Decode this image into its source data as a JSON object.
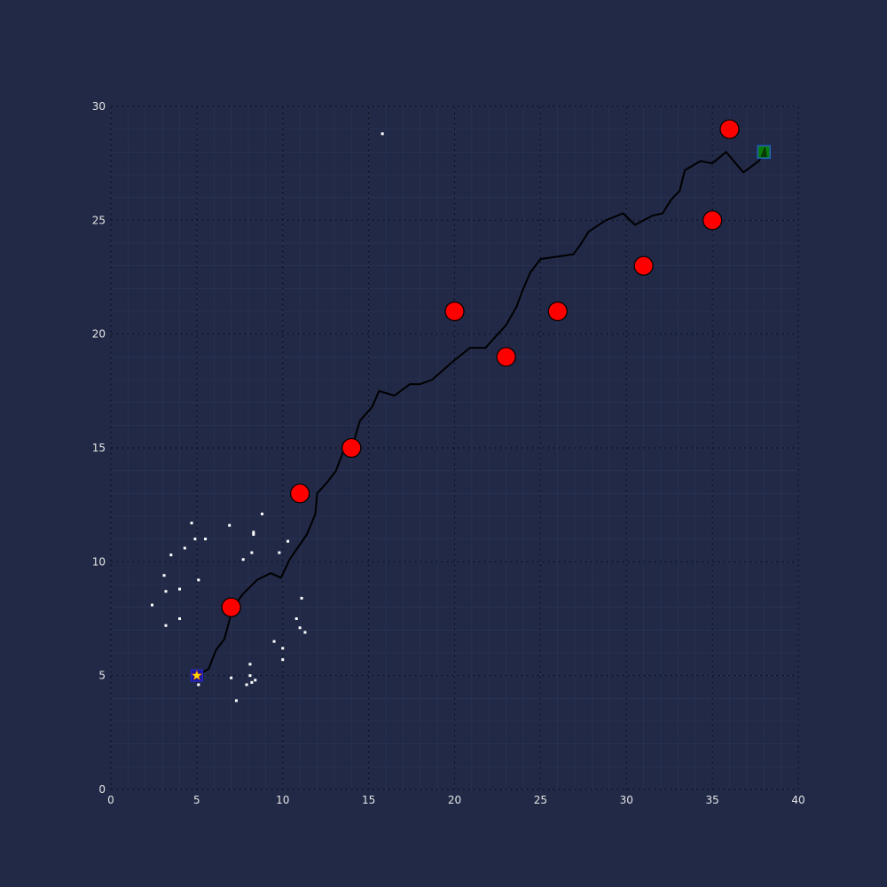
{
  "colors": {
    "background": "#212946",
    "grid_major": "#0f1428",
    "grid_minor": "#2e3758",
    "tick_text": "#e6e6e6",
    "path": "#000000",
    "obstacle": "#ff0000",
    "start_marker": "#1a1aa0",
    "start_star": "#ffd700",
    "goal_marker": "#1f5fbf",
    "goal_fill": "#0a7a0a",
    "scatter": "#ffffff"
  },
  "chart_data": {
    "type": "scatter",
    "xlim": [
      0,
      40
    ],
    "ylim": [
      0,
      30
    ],
    "xticks": [
      0,
      5,
      10,
      15,
      20,
      25,
      30,
      35,
      40
    ],
    "yticks": [
      0,
      5,
      10,
      15,
      20,
      25,
      30
    ],
    "xtick_labels": [
      "0",
      "5",
      "10",
      "15",
      "20",
      "25",
      "30",
      "35",
      "40"
    ],
    "ytick_labels": [
      "0",
      "5",
      "10",
      "15",
      "20",
      "25",
      "30"
    ],
    "grid": true,
    "start": [
      5,
      5
    ],
    "goal": [
      38,
      28
    ],
    "obstacles": [
      [
        7,
        8
      ],
      [
        11,
        13
      ],
      [
        14,
        15
      ],
      [
        20,
        21
      ],
      [
        23,
        19
      ],
      [
        26,
        21
      ],
      [
        31,
        23
      ],
      [
        35,
        25
      ],
      [
        36,
        29
      ]
    ],
    "path": [
      [
        5,
        5
      ],
      [
        5.7,
        5.3
      ],
      [
        6.1,
        6.1
      ],
      [
        6.6,
        6.6
      ],
      [
        7.1,
        8.0
      ],
      [
        7.7,
        8.6
      ],
      [
        8.5,
        9.2
      ],
      [
        9.3,
        9.5
      ],
      [
        9.9,
        9.3
      ],
      [
        10.4,
        10.1
      ],
      [
        11.4,
        11.2
      ],
      [
        11.9,
        12.1
      ],
      [
        12.0,
        13.0
      ],
      [
        12.6,
        13.5
      ],
      [
        13.1,
        14.0
      ],
      [
        13.6,
        15.0
      ],
      [
        14.1,
        15.2
      ],
      [
        14.5,
        16.2
      ],
      [
        15.2,
        16.8
      ],
      [
        15.6,
        17.5
      ],
      [
        16.5,
        17.3
      ],
      [
        17.4,
        17.8
      ],
      [
        18.0,
        17.8
      ],
      [
        18.7,
        18.0
      ],
      [
        19.9,
        18.8
      ],
      [
        20.9,
        19.4
      ],
      [
        21.8,
        19.4
      ],
      [
        23.0,
        20.4
      ],
      [
        23.6,
        21.2
      ],
      [
        24.0,
        22.0
      ],
      [
        24.4,
        22.7
      ],
      [
        25.0,
        23.3
      ],
      [
        26.9,
        23.5
      ],
      [
        27.3,
        23.9
      ],
      [
        27.8,
        24.5
      ],
      [
        28.8,
        25.0
      ],
      [
        29.8,
        25.3
      ],
      [
        30.5,
        24.8
      ],
      [
        31.5,
        25.2
      ],
      [
        32.1,
        25.3
      ],
      [
        32.6,
        25.9
      ],
      [
        33.1,
        26.3
      ],
      [
        33.4,
        27.2
      ],
      [
        34.3,
        27.6
      ],
      [
        35.0,
        27.5
      ],
      [
        35.8,
        28.0
      ],
      [
        36.8,
        27.1
      ],
      [
        37.7,
        27.6
      ],
      [
        38,
        28
      ]
    ],
    "scatter_points": [
      [
        15.8,
        28.8
      ],
      [
        4.7,
        11.7
      ],
      [
        6.9,
        11.6
      ],
      [
        8.8,
        12.1
      ],
      [
        5.5,
        11.0
      ],
      [
        4.9,
        11.0
      ],
      [
        8.3,
        11.3
      ],
      [
        8.3,
        11.2
      ],
      [
        10.3,
        10.9
      ],
      [
        4.3,
        10.6
      ],
      [
        3.5,
        10.3
      ],
      [
        8.2,
        10.4
      ],
      [
        9.8,
        10.4
      ],
      [
        7.7,
        10.1
      ],
      [
        3.1,
        9.4
      ],
      [
        5.1,
        9.2
      ],
      [
        4.0,
        8.8
      ],
      [
        3.2,
        8.7
      ],
      [
        11.1,
        8.4
      ],
      [
        2.4,
        8.1
      ],
      [
        4.0,
        7.5
      ],
      [
        10.8,
        7.5
      ],
      [
        3.2,
        7.2
      ],
      [
        11.0,
        7.1
      ],
      [
        11.3,
        6.9
      ],
      [
        9.5,
        6.5
      ],
      [
        10.0,
        6.2
      ],
      [
        10.0,
        5.7
      ],
      [
        8.1,
        5.5
      ],
      [
        8.1,
        5.0
      ],
      [
        7.0,
        4.9
      ],
      [
        8.4,
        4.8
      ],
      [
        8.2,
        4.7
      ],
      [
        7.9,
        4.6
      ],
      [
        5.1,
        4.6
      ],
      [
        7.3,
        3.9
      ]
    ]
  }
}
